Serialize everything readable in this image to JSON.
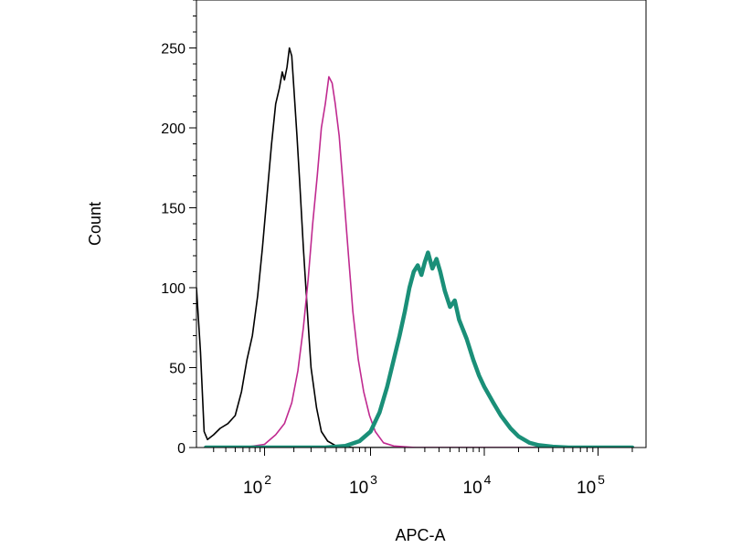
{
  "chart_data": {
    "type": "line",
    "title": "",
    "xlabel": "APC-A",
    "ylabel": "Count",
    "x_scale": "biexponential",
    "xlim": [
      20,
      200000
    ],
    "ylim": [
      0,
      280
    ],
    "x_ticks": [
      {
        "value": 100,
        "base": "10",
        "exp": "2"
      },
      {
        "value": 1000,
        "base": "10",
        "exp": "3"
      },
      {
        "value": 10000,
        "base": "10",
        "exp": "4"
      },
      {
        "value": 100000,
        "base": "10",
        "exp": "5"
      }
    ],
    "y_ticks": [
      0,
      50,
      100,
      150,
      200,
      250
    ],
    "grid": false,
    "series": [
      {
        "color": "#000000",
        "line_width": 1.6,
        "points": [
          [
            20,
            100
          ],
          [
            22,
            60
          ],
          [
            24,
            10
          ],
          [
            26,
            5
          ],
          [
            30,
            8
          ],
          [
            35,
            12
          ],
          [
            42,
            15
          ],
          [
            50,
            20
          ],
          [
            58,
            35
          ],
          [
            66,
            55
          ],
          [
            75,
            70
          ],
          [
            85,
            95
          ],
          [
            95,
            125
          ],
          [
            105,
            155
          ],
          [
            118,
            190
          ],
          [
            130,
            215
          ],
          [
            142,
            225
          ],
          [
            152,
            235
          ],
          [
            160,
            230
          ],
          [
            170,
            238
          ],
          [
            180,
            250
          ],
          [
            190,
            245
          ],
          [
            200,
            225
          ],
          [
            215,
            195
          ],
          [
            230,
            165
          ],
          [
            250,
            125
          ],
          [
            275,
            85
          ],
          [
            300,
            50
          ],
          [
            335,
            25
          ],
          [
            370,
            10
          ],
          [
            420,
            4
          ],
          [
            500,
            1
          ],
          [
            700,
            0
          ],
          [
            1200,
            0
          ],
          [
            200000,
            0
          ]
        ]
      },
      {
        "color": "#c02a90",
        "line_width": 1.6,
        "points": [
          [
            25,
            0
          ],
          [
            60,
            0
          ],
          [
            100,
            2
          ],
          [
            130,
            8
          ],
          [
            160,
            15
          ],
          [
            190,
            28
          ],
          [
            220,
            48
          ],
          [
            250,
            75
          ],
          [
            280,
            105
          ],
          [
            310,
            140
          ],
          [
            340,
            170
          ],
          [
            370,
            200
          ],
          [
            400,
            215
          ],
          [
            430,
            232
          ],
          [
            460,
            228
          ],
          [
            490,
            215
          ],
          [
            530,
            195
          ],
          [
            580,
            160
          ],
          [
            640,
            120
          ],
          [
            700,
            85
          ],
          [
            780,
            55
          ],
          [
            870,
            35
          ],
          [
            980,
            20
          ],
          [
            1100,
            10
          ],
          [
            1300,
            3
          ],
          [
            1600,
            1
          ],
          [
            2500,
            0
          ],
          [
            200000,
            0
          ]
        ]
      },
      {
        "color": "#1a8f78",
        "line_width": 4.5,
        "points": [
          [
            25,
            0
          ],
          [
            400,
            0
          ],
          [
            600,
            1
          ],
          [
            800,
            4
          ],
          [
            1000,
            10
          ],
          [
            1200,
            22
          ],
          [
            1400,
            38
          ],
          [
            1600,
            55
          ],
          [
            1800,
            70
          ],
          [
            2000,
            85
          ],
          [
            2200,
            100
          ],
          [
            2400,
            110
          ],
          [
            2600,
            114
          ],
          [
            2800,
            108
          ],
          [
            3000,
            116
          ],
          [
            3200,
            122
          ],
          [
            3500,
            112
          ],
          [
            3800,
            118
          ],
          [
            4100,
            110
          ],
          [
            4500,
            98
          ],
          [
            5000,
            88
          ],
          [
            5500,
            92
          ],
          [
            6000,
            80
          ],
          [
            7000,
            68
          ],
          [
            8000,
            55
          ],
          [
            9000,
            45
          ],
          [
            10000,
            38
          ],
          [
            12000,
            28
          ],
          [
            14000,
            20
          ],
          [
            17000,
            12
          ],
          [
            20000,
            7
          ],
          [
            25000,
            3
          ],
          [
            30000,
            1.5
          ],
          [
            40000,
            0.5
          ],
          [
            55000,
            0
          ],
          [
            200000,
            0
          ]
        ]
      }
    ]
  }
}
